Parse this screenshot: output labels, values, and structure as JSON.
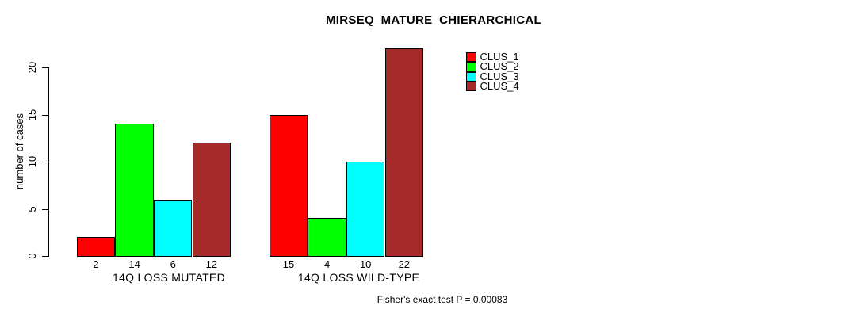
{
  "chart_data": {
    "type": "bar",
    "title": "MIRSEQ_MATURE_CHIERARCHICAL",
    "xlabel": "",
    "ylabel": "number of cases",
    "categories": [
      "14Q LOSS MUTATED",
      "14Q LOSS WILD-TYPE"
    ],
    "series": [
      {
        "name": "CLUS_1",
        "color": "#FF0000",
        "values": [
          2,
          15
        ]
      },
      {
        "name": "CLUS_2",
        "color": "#00FF00",
        "values": [
          14,
          4
        ]
      },
      {
        "name": "CLUS_3",
        "color": "#00FFFF",
        "values": [
          6,
          10
        ]
      },
      {
        "name": "CLUS_4",
        "color": "#A52A2A",
        "values": [
          12,
          22
        ]
      }
    ],
    "bar_value_labels": [
      [
        2,
        14,
        6,
        12
      ],
      [
        15,
        4,
        10,
        22
      ]
    ],
    "yticks": [
      0,
      5,
      10,
      15,
      20
    ],
    "ylim": [
      0,
      22
    ],
    "grid": false,
    "legend_position": "top-right",
    "annotation": "Fisher's exact test P = 0.00083",
    "background_color": "#ffffff",
    "axis_color": "#000000"
  }
}
